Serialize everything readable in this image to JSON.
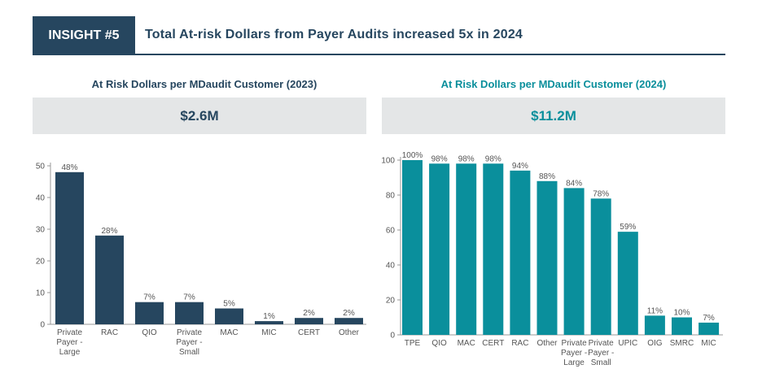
{
  "header": {
    "badge": "INSIGHT #5",
    "title": "Total At-risk Dollars from Payer Audits increased 5x in 2024"
  },
  "left": {
    "subtitle": "At Risk Dollars per MDaudit Customer (2023)",
    "total": "$2.6M"
  },
  "right": {
    "subtitle": "At Risk Dollars per MDaudit Customer (2024)",
    "total": "$11.2M"
  },
  "colors": {
    "navy": "#26465f",
    "teal": "#0a8f9c"
  },
  "chart_data": [
    {
      "type": "bar",
      "title": "At Risk Dollars per MDaudit Customer (2023)",
      "categories": [
        "Private Payer - Large",
        "RAC",
        "QIO",
        "Private Payer - Small",
        "MAC",
        "MIC",
        "CERT",
        "Other"
      ],
      "values": [
        48,
        28,
        7,
        7,
        5,
        1,
        2,
        2
      ],
      "labels": [
        "48%",
        "28%",
        "7%",
        "7%",
        "5%",
        "1%",
        "2%",
        "2%"
      ],
      "ylim": [
        0,
        50
      ],
      "yticks": [
        0,
        10,
        20,
        30,
        40,
        50
      ],
      "color": "#26465f",
      "grid": false
    },
    {
      "type": "bar",
      "title": "At Risk Dollars per MDaudit Customer (2024)",
      "categories": [
        "TPE",
        "QIO",
        "MAC",
        "CERT",
        "RAC",
        "Other",
        "Private Payer - Large",
        "Private Payer - Small",
        "UPIC",
        "OIG",
        "SMRC",
        "MIC"
      ],
      "values": [
        100,
        98,
        98,
        98,
        94,
        88,
        84,
        78,
        59,
        11,
        10,
        7
      ],
      "labels": [
        "100%",
        "98%",
        "98%",
        "98%",
        "94%",
        "88%",
        "84%",
        "78%",
        "59%",
        "11%",
        "10%",
        "7%"
      ],
      "ylim": [
        0,
        100
      ],
      "yticks": [
        0,
        20,
        40,
        60,
        80,
        100
      ],
      "color": "#0a8f9c",
      "grid": false
    }
  ]
}
